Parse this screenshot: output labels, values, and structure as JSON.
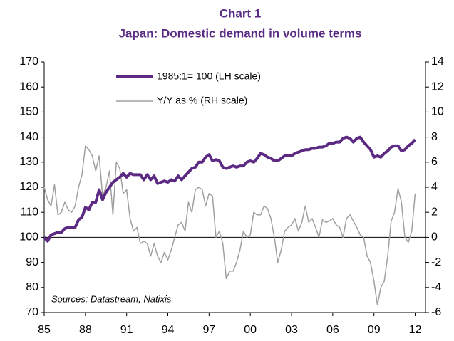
{
  "chart_data": {
    "type": "line",
    "title": "Chart 1",
    "subtitle": "Japan: Domestic demand in volume terms",
    "annotation": "Sources: Datastream, Natixis",
    "xlim": [
      1985,
      2012.75
    ],
    "xticks": [
      {
        "value": 1985,
        "label": "85"
      },
      {
        "value": 1988,
        "label": "88"
      },
      {
        "value": 1991,
        "label": "91"
      },
      {
        "value": 1994,
        "label": "94"
      },
      {
        "value": 1997,
        "label": "97"
      },
      {
        "value": 2000,
        "label": "00"
      },
      {
        "value": 2003,
        "label": "03"
      },
      {
        "value": 2006,
        "label": "06"
      },
      {
        "value": 2009,
        "label": "09"
      },
      {
        "value": 2012,
        "label": "12"
      }
    ],
    "ylim": [
      70,
      170
    ],
    "yticks": [
      70,
      80,
      90,
      100,
      110,
      120,
      130,
      140,
      150,
      160,
      170
    ],
    "y2lim": [
      -6,
      14
    ],
    "y2ticks": [
      -6,
      -4,
      -2,
      0,
      2,
      4,
      6,
      8,
      10,
      12,
      14
    ],
    "x": [
      1985,
      1985.25,
      1985.5,
      1985.75,
      1986,
      1986.25,
      1986.5,
      1986.75,
      1987,
      1987.25,
      1987.5,
      1987.75,
      1988,
      1988.25,
      1988.5,
      1988.75,
      1989,
      1989.25,
      1989.5,
      1989.75,
      1990,
      1990.25,
      1990.5,
      1990.75,
      1991,
      1991.25,
      1991.5,
      1991.75,
      1992,
      1992.25,
      1992.5,
      1992.75,
      1993,
      1993.25,
      1993.5,
      1993.75,
      1994,
      1994.25,
      1994.5,
      1994.75,
      1995,
      1995.25,
      1995.5,
      1995.75,
      1996,
      1996.25,
      1996.5,
      1996.75,
      1997,
      1997.25,
      1997.5,
      1997.75,
      1998,
      1998.25,
      1998.5,
      1998.75,
      1999,
      1999.25,
      1999.5,
      1999.75,
      2000,
      2000.25,
      2000.5,
      2000.75,
      2001,
      2001.25,
      2001.5,
      2001.75,
      2002,
      2002.25,
      2002.5,
      2002.75,
      2003,
      2003.25,
      2003.5,
      2003.75,
      2004,
      2004.25,
      2004.5,
      2004.75,
      2005,
      2005.25,
      2005.5,
      2005.75,
      2006,
      2006.25,
      2006.5,
      2006.75,
      2007,
      2007.25,
      2007.5,
      2007.75,
      2008,
      2008.25,
      2008.5,
      2008.75,
      2009,
      2009.25,
      2009.5,
      2009.75,
      2010,
      2010.25,
      2010.5,
      2010.75,
      2011,
      2011.25,
      2011.5,
      2011.75,
      2012
    ],
    "series": [
      {
        "name": "1985:1= 100 (LH scale)",
        "color": "#5c2a82",
        "axis": "y",
        "values": [
          100,
          98.5,
          101,
          101.5,
          102,
          102,
          103.5,
          104,
          104,
          104,
          107,
          108,
          112,
          111,
          114,
          114,
          119,
          115,
          118,
          120,
          122,
          123,
          124,
          125.5,
          124,
          125.5,
          125,
          125,
          125,
          123,
          125,
          123,
          124.5,
          121.5,
          122,
          122.5,
          122,
          123,
          122.5,
          124.5,
          123,
          124.5,
          126,
          127.5,
          128,
          130,
          130,
          132,
          133,
          130.5,
          131,
          130.5,
          128,
          127.5,
          128,
          128.5,
          128,
          128.5,
          128.5,
          130,
          130.5,
          130,
          131.5,
          133.5,
          133,
          132,
          131.5,
          130.5,
          130.5,
          131.5,
          132.5,
          132.5,
          132.5,
          133.5,
          134,
          134.5,
          135,
          135,
          135.5,
          135.5,
          136,
          136,
          136.5,
          137.5,
          137.5,
          138,
          138,
          139.5,
          140,
          139.5,
          138,
          139.5,
          140,
          138,
          136.5,
          135,
          132,
          132.5,
          132,
          133.5,
          134.5,
          136,
          136.5,
          136.5,
          134.5,
          135,
          136.5,
          137.5,
          139
        ]
      },
      {
        "name": "Y/Y as % (RH scale)",
        "color": "#a0a0a0",
        "axis": "y2",
        "values": [
          4,
          3,
          2.5,
          4.2,
          1.8,
          2,
          2.8,
          2.2,
          2,
          2.5,
          4,
          5,
          7.3,
          7,
          6.5,
          5.3,
          6.5,
          3.3,
          4,
          5.3,
          1.8,
          6,
          5.5,
          3.5,
          3.8,
          1.5,
          0.5,
          0.8,
          -0.5,
          -0.3,
          -0.5,
          -1.5,
          -0.5,
          -1.5,
          -2,
          -1.2,
          -1.8,
          -1,
          0,
          1,
          1.2,
          0.5,
          2.8,
          2,
          3.8,
          4,
          3.8,
          2.5,
          3.5,
          3.3,
          0,
          0.5,
          -0.5,
          -3.3,
          -2.7,
          -2.7,
          -2,
          -1,
          0.5,
          0,
          0.2,
          2,
          1.8,
          1.8,
          2.5,
          2.3,
          1.5,
          0,
          -2,
          -1,
          0.5,
          0.8,
          1,
          1.5,
          0.5,
          1.2,
          2.5,
          1.2,
          1.5,
          0.8,
          0,
          1.4,
          1.2,
          1.3,
          1.5,
          1,
          0.8,
          0,
          1.5,
          1.8,
          1.3,
          0.8,
          0.2,
          0,
          -1.5,
          -2,
          -3.5,
          -5.4,
          -4,
          -3.5,
          -1.5,
          1.3,
          2,
          3.9,
          2.8,
          0,
          -0.4,
          0.5,
          3.5
        ]
      }
    ]
  }
}
